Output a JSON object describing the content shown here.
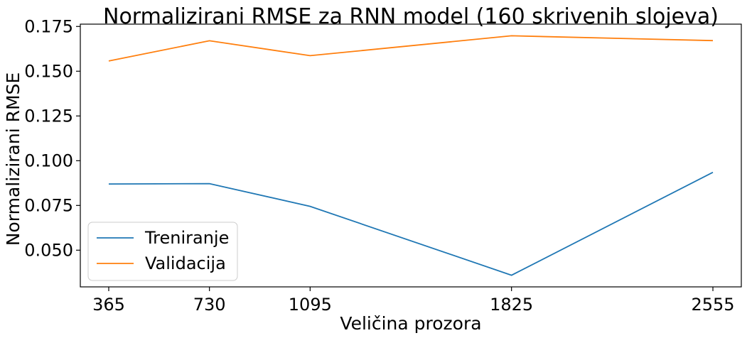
{
  "chart_data": {
    "type": "line",
    "title": "Normalizirani RMSE za RNN model (160 skrivenih slojeva)",
    "xlabel": "Veličina prozora",
    "ylabel": "Normalizirani RMSE",
    "x": [
      365,
      730,
      1095,
      1825,
      2555
    ],
    "xticks": [
      "365",
      "730",
      "1095",
      "1825",
      "2555"
    ],
    "yticks": [
      "0.050",
      "0.075",
      "0.100",
      "0.125",
      "0.150",
      "0.175"
    ],
    "xlim": [
      262,
      2658
    ],
    "ylim": [
      0.0295,
      0.1763
    ],
    "grid": false,
    "legend_position": "lower-left",
    "series": [
      {
        "name": "Treniranje",
        "color": "#1f77b4",
        "values": [
          0.087,
          0.0872,
          0.0745,
          0.036,
          0.0935
        ]
      },
      {
        "name": "Validacija",
        "color": "#ff7f0e",
        "values": [
          0.1557,
          0.167,
          0.1587,
          0.1698,
          0.1671
        ]
      }
    ]
  }
}
